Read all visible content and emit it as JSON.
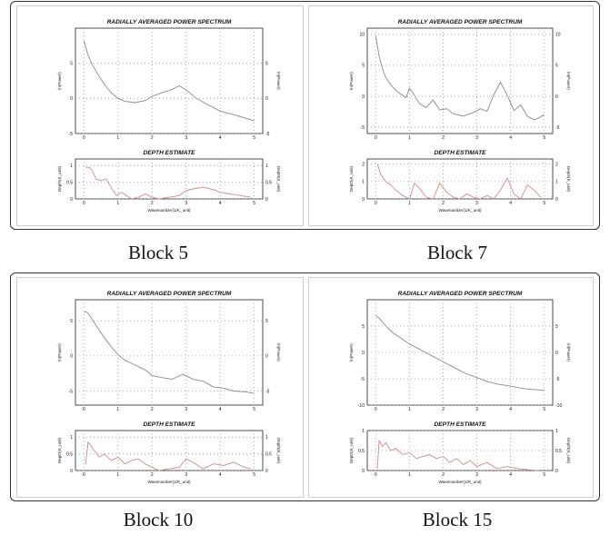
{
  "blocks": [
    {
      "caption": "Block 5",
      "power": {
        "title": "RADIALLY AVERAGED POWER SPECTRUM",
        "ylabel": "ln(Power)",
        "ylabel_right": "ln(Power)",
        "ylim": [
          -5,
          10
        ],
        "yticks": [
          "-5",
          "0",
          "5"
        ],
        "yticks_right": [
          "-5",
          "0",
          "5"
        ],
        "x": [
          0,
          0.1,
          0.2,
          0.4,
          0.6,
          0.8,
          1.0,
          1.2,
          1.5,
          1.8,
          2.0,
          2.3,
          2.6,
          2.8,
          3.0,
          3.3,
          3.6,
          4.0,
          4.3,
          4.6,
          5.0
        ],
        "y": [
          8.2,
          6.5,
          5.2,
          3.5,
          2.0,
          0.8,
          0.0,
          -0.4,
          -0.6,
          -0.3,
          0.3,
          0.8,
          1.3,
          1.8,
          1.2,
          0.0,
          -0.8,
          -1.8,
          -2.2,
          -2.6,
          -3.2
        ]
      },
      "depth": {
        "title": "DEPTH ESTIMATE",
        "ylabel": "Depth(K_unit)",
        "ylabel_right": "Depth(K_unit)",
        "xlabel": "Wavenumber(1/K_unit)",
        "ylim": [
          0,
          1.2
        ],
        "yticks": [
          "0",
          "0.5",
          "1"
        ],
        "yticks_right": [
          "0",
          "0.5",
          "1"
        ],
        "xticks": [
          "0",
          "1",
          "2",
          "3",
          "4",
          "5"
        ],
        "x": [
          0.05,
          0.15,
          0.25,
          0.35,
          0.5,
          0.65,
          0.8,
          0.95,
          1.1,
          1.25,
          1.4,
          1.6,
          1.8,
          2.0,
          2.2,
          2.5,
          2.8,
          3.0,
          3.2,
          3.5,
          3.8,
          4.0,
          4.3,
          4.6,
          4.9
        ],
        "y": [
          0.95,
          0.95,
          0.85,
          0.6,
          0.55,
          0.6,
          0.35,
          0.1,
          0.2,
          0.1,
          0.0,
          0.05,
          0.15,
          0.05,
          0.0,
          0.05,
          0.1,
          0.25,
          0.3,
          0.35,
          0.28,
          0.2,
          0.15,
          0.1,
          0.05
        ]
      }
    },
    {
      "caption": "Block 7",
      "power": {
        "title": "RADIALLY AVERAGED POWER SPECTRUM",
        "ylabel": "ln(Power)",
        "ylabel_right": "ln(Power)",
        "ylim": [
          -6,
          11
        ],
        "yticks": [
          "-5",
          "0",
          "5",
          "10"
        ],
        "yticks_right": [
          "-5",
          "0",
          "5",
          "10"
        ],
        "x": [
          0,
          0.1,
          0.2,
          0.3,
          0.5,
          0.7,
          0.9,
          1.0,
          1.1,
          1.3,
          1.5,
          1.7,
          1.9,
          2.1,
          2.3,
          2.6,
          2.9,
          3.1,
          3.3,
          3.5,
          3.7,
          3.9,
          4.1,
          4.3,
          4.5,
          4.7,
          5.0
        ],
        "y": [
          9.8,
          6.5,
          4.5,
          3.0,
          1.5,
          0.5,
          -0.2,
          1.3,
          0.6,
          -1.2,
          -1.8,
          -0.6,
          -2.2,
          -2.0,
          -2.8,
          -3.2,
          -2.6,
          -2.0,
          -2.4,
          0.2,
          2.3,
          0.2,
          -2.3,
          -1.4,
          -3.2,
          -3.8,
          -3.0
        ]
      },
      "depth": {
        "title": "DEPTH ESTIMATE",
        "ylabel": "Depth(K_unit)",
        "ylabel_right": "Depth(K_unit)",
        "xlabel": "Wavenumber(1/K_unit)",
        "ylim": [
          0,
          2.3
        ],
        "yticks": [
          "0",
          "1",
          "2"
        ],
        "yticks_right": [
          "0",
          "1",
          "2"
        ],
        "xticks": [
          "0",
          "1",
          "2",
          "3",
          "4",
          "5"
        ],
        "x": [
          0.05,
          0.15,
          0.3,
          0.45,
          0.6,
          0.8,
          1.0,
          1.15,
          1.3,
          1.5,
          1.7,
          1.9,
          2.1,
          2.3,
          2.5,
          2.7,
          2.9,
          3.1,
          3.3,
          3.5,
          3.7,
          3.9,
          4.1,
          4.3,
          4.5,
          4.7,
          4.9
        ],
        "y": [
          2.0,
          1.4,
          1.0,
          0.8,
          0.5,
          0.2,
          0.0,
          0.9,
          0.6,
          0.1,
          0.0,
          0.9,
          0.4,
          0.1,
          0.0,
          0.3,
          0.1,
          0.0,
          0.2,
          0.0,
          0.5,
          1.2,
          0.3,
          0.0,
          0.8,
          0.5,
          0.1
        ]
      }
    },
    {
      "caption": "Block 10",
      "power": {
        "title": "RADIALLY AVERAGED POWER SPECTRUM",
        "ylabel": "ln(Power)",
        "ylabel_right": "ln(Power)",
        "ylim": [
          -7,
          8
        ],
        "yticks": [
          "-5",
          "0",
          "5"
        ],
        "yticks_right": [
          "-5",
          "0",
          "5"
        ],
        "x": [
          0,
          0.1,
          0.2,
          0.4,
          0.6,
          0.8,
          1.0,
          1.2,
          1.5,
          1.8,
          2.0,
          2.3,
          2.6,
          2.9,
          3.2,
          3.5,
          3.8,
          4.1,
          4.4,
          4.7,
          5.0
        ],
        "y": [
          6.3,
          6.2,
          5.5,
          4.0,
          2.6,
          1.3,
          0.2,
          -0.6,
          -1.3,
          -2.0,
          -2.8,
          -3.1,
          -3.3,
          -2.6,
          -3.3,
          -3.6,
          -4.4,
          -4.6,
          -5.0,
          -5.1,
          -5.3
        ]
      },
      "depth": {
        "title": "DEPTH ESTIMATE",
        "ylabel": "Depth(K_unit)",
        "ylabel_right": "Depth(K_unit)",
        "xlabel": "Wavenumber(1/K_unit)",
        "ylim": [
          0,
          1.2
        ],
        "yticks": [
          "0",
          "0.5",
          "1"
        ],
        "yticks_right": [
          "0",
          "0.5",
          "1"
        ],
        "xticks": [
          "0",
          "1",
          "2",
          "3",
          "4",
          "5"
        ],
        "x": [
          0.05,
          0.12,
          0.2,
          0.3,
          0.45,
          0.6,
          0.8,
          1.0,
          1.2,
          1.4,
          1.6,
          1.8,
          2.0,
          2.2,
          2.5,
          2.8,
          3.0,
          3.2,
          3.5,
          3.8,
          4.1,
          4.4,
          4.7,
          4.9
        ],
        "y": [
          0.2,
          0.85,
          0.75,
          0.6,
          0.4,
          0.5,
          0.3,
          0.4,
          0.2,
          0.3,
          0.35,
          0.2,
          0.1,
          0.0,
          0.05,
          0.1,
          0.35,
          0.25,
          0.05,
          0.2,
          0.15,
          0.25,
          0.1,
          0.05
        ]
      }
    },
    {
      "caption": "Block 15",
      "power": {
        "title": "RADIALLY AVERAGED POWER SPECTRUM",
        "ylabel": "ln(Power)",
        "ylabel_right": "ln(Power)",
        "ylim": [
          -10,
          10
        ],
        "yticks": [
          "-10",
          "-5",
          "0",
          "5"
        ],
        "yticks_right": [
          "-10",
          "-5",
          "0",
          "5"
        ],
        "x": [
          0,
          0.1,
          0.3,
          0.5,
          0.8,
          1.0,
          1.3,
          1.6,
          2.0,
          2.3,
          2.6,
          3.0,
          3.3,
          3.6,
          4.0,
          4.3,
          4.6,
          5.0
        ],
        "y": [
          7.0,
          6.5,
          5.0,
          3.8,
          2.5,
          1.6,
          0.6,
          -0.4,
          -1.8,
          -2.8,
          -3.8,
          -4.8,
          -5.5,
          -6.0,
          -6.4,
          -6.8,
          -7.0,
          -7.2
        ]
      },
      "depth": {
        "title": "DEPTH ESTIMATE",
        "ylabel": "Depth(K_unit)",
        "ylabel_right": "Depth(K_unit)",
        "xlabel": "Wavenumber(1/K_unit)",
        "ylim": [
          0,
          1.0
        ],
        "yticks": [
          "0",
          "0.5",
          "1"
        ],
        "yticks_right": [
          "0",
          "0.5",
          "1"
        ],
        "xticks": [
          "0",
          "1",
          "2",
          "3",
          "4",
          "5"
        ],
        "x": [
          0.05,
          0.1,
          0.2,
          0.3,
          0.45,
          0.6,
          0.8,
          1.0,
          1.2,
          1.4,
          1.6,
          1.8,
          2.0,
          2.2,
          2.4,
          2.6,
          2.8,
          3.0,
          3.3,
          3.6,
          3.9,
          4.2,
          4.5,
          4.8
        ],
        "y": [
          0.05,
          0.75,
          0.6,
          0.7,
          0.5,
          0.55,
          0.4,
          0.45,
          0.3,
          0.35,
          0.4,
          0.3,
          0.35,
          0.2,
          0.3,
          0.15,
          0.25,
          0.1,
          0.2,
          0.05,
          0.1,
          0.05,
          0.02,
          0.0
        ]
      }
    }
  ],
  "colors": {
    "power_line": "#8a8a8a",
    "depth_line": "#d08a8a",
    "axis": "#222222",
    "grid": "#9a9a9a"
  }
}
